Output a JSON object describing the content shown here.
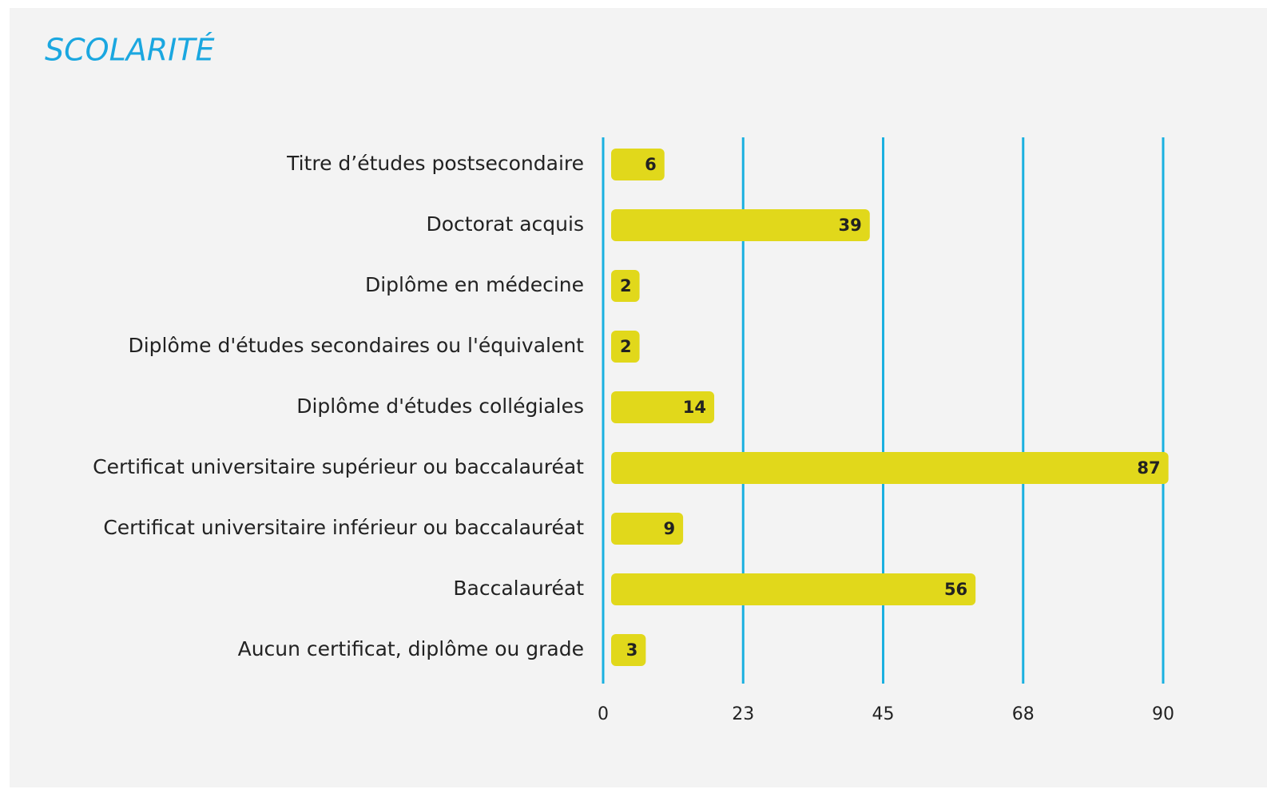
{
  "chart_data": {
    "type": "hbar",
    "title": "SCOLARITÉ",
    "categories": [
      "Titre d’études postsecondaire",
      "Doctorat acquis",
      "Diplôme en médecine",
      "Diplôme d'études secondaires ou l'équivalent",
      "Diplôme d'études collégiales",
      "Certificat universitaire supérieur ou baccalauréat",
      "Certificat universitaire inférieur ou baccalauréat",
      "Baccalauréat",
      "Aucun certificat, diplôme ou grade"
    ],
    "values": [
      6,
      39,
      2,
      2,
      14,
      87,
      9,
      56,
      3
    ],
    "color": "#e1d81b",
    "xlim": [
      0,
      90
    ],
    "xticks": [
      0,
      {
        "value": 22.5,
        "label": "23"
      },
      45,
      {
        "value": 67.5,
        "label": "68"
      },
      90
    ],
    "grid": true,
    "grid_color": "#1ab0e0"
  }
}
